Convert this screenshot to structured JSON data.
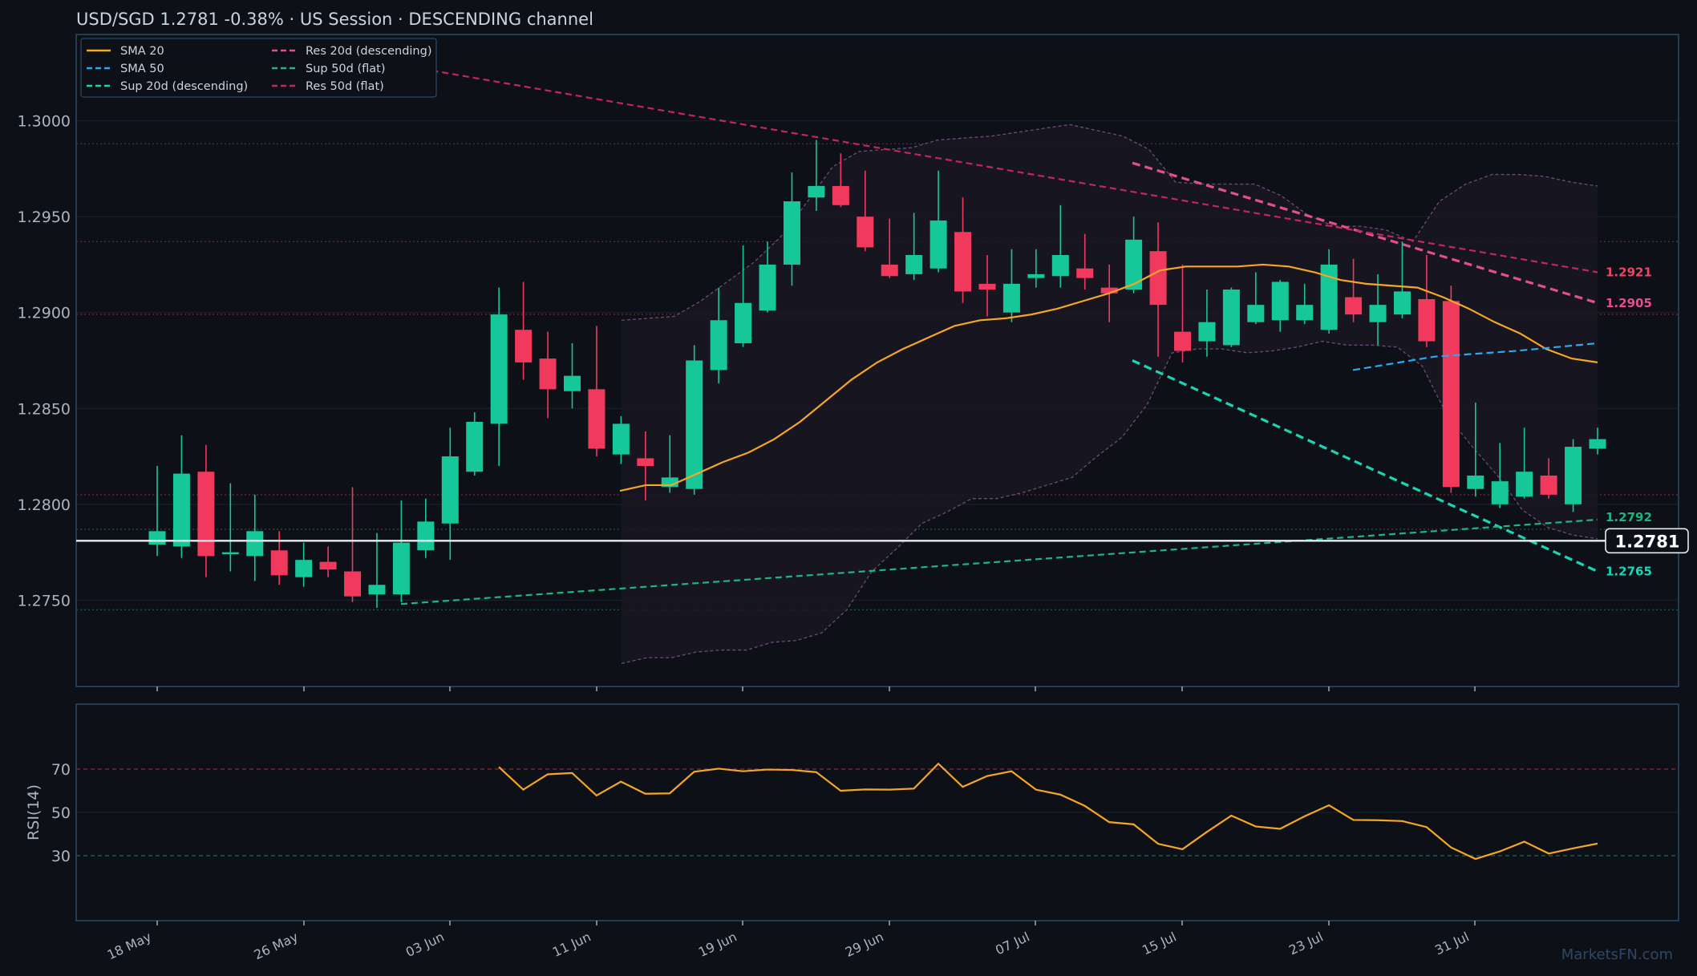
{
  "header": {
    "title": "USD/SGD   1.2781   -0.38%  ·  US Session  ·  DESCENDING channel"
  },
  "colors": {
    "background": "#0d1117",
    "panel_border": "#2a4a6a",
    "up": "#16c79a",
    "down": "#f0395d",
    "sma20": "#f5a623",
    "sma50": "#2aa8f0",
    "sup20": "#18d6b4",
    "res20": "#e34f8d",
    "sup50": "#1fb57e",
    "res50": "#c2265b",
    "bollinger": "#6d4a7c",
    "rsi": "#f5a623"
  },
  "watermark": "MarketsFN.com",
  "chart_data": {
    "type": "candlestick",
    "ylim": [
      1.2705,
      1.3045
    ],
    "yticks": [
      "1.3000",
      "1.2950",
      "1.2900",
      "1.2850",
      "1.2800",
      "1.2750"
    ],
    "xticks": [
      "18 May",
      "26 May",
      "03 Jun",
      "11 Jun",
      "19 Jun",
      "29 Jun",
      "07 Jul",
      "15 Jul",
      "23 Jul",
      "31 Jul"
    ],
    "x": [
      "2025-05-18",
      "2025-05-19",
      "2025-05-20",
      "2025-05-21",
      "2025-05-22",
      "2025-05-23",
      "2025-05-24",
      "2025-05-25",
      "2025-05-26",
      "2025-05-27",
      "2025-05-28",
      "2025-05-29",
      "2025-05-30",
      "2025-05-31",
      "2025-06-01",
      "2025-06-02",
      "2025-06-03",
      "2025-06-04",
      "2025-06-05",
      "2025-06-06",
      "2025-06-07",
      "2025-06-08",
      "2025-06-09",
      "2025-06-10",
      "2025-06-11",
      "2025-06-12",
      "2025-06-13",
      "2025-06-14",
      "2025-06-15",
      "2025-06-16",
      "2025-06-17",
      "2025-06-18",
      "2025-06-19",
      "2025-06-20",
      "2025-06-21",
      "2025-06-22",
      "2025-06-23",
      "2025-06-24",
      "2025-06-25",
      "2025-06-26",
      "2025-06-27",
      "2025-06-28",
      "2025-06-29",
      "2025-06-30",
      "2025-07-01",
      "2025-07-02",
      "2025-07-03",
      "2025-07-04",
      "2025-07-05",
      "2025-07-06",
      "2025-07-07",
      "2025-07-08",
      "2025-07-09",
      "2025-07-10",
      "2025-07-11",
      "2025-07-12",
      "2025-07-13",
      "2025-07-14",
      "2025-07-15",
      "2025-07-16",
      "2025-07-17",
      "2025-07-18",
      "2025-07-19",
      "2025-07-20",
      "2025-07-21",
      "2025-07-22",
      "2025-07-23",
      "2025-07-24",
      "2025-07-25",
      "2025-07-26",
      "2025-07-27",
      "2025-07-28",
      "2025-07-29",
      "2025-07-30",
      "2025-07-31",
      "2025-08-01",
      "2025-08-02",
      "2025-08-03",
      "2025-08-04"
    ],
    "candles": [
      {
        "o": 1.2779,
        "h": 1.282,
        "l": 1.2773,
        "c": 1.2786
      },
      {
        "o": 1.2778,
        "h": 1.2836,
        "l": 1.2772,
        "c": 1.2816
      },
      {
        "o": 1.2817,
        "h": 1.2831,
        "l": 1.2762,
        "c": 1.2773
      },
      {
        "o": 1.2774,
        "h": 1.2811,
        "l": 1.2765,
        "c": 1.2775
      },
      {
        "o": 1.2773,
        "h": 1.2805,
        "l": 1.276,
        "c": 1.2786
      },
      {
        "o": 1.2776,
        "h": 1.2786,
        "l": 1.2758,
        "c": 1.2763
      },
      {
        "o": 1.2762,
        "h": 1.278,
        "l": 1.2757,
        "c": 1.2771
      },
      {
        "o": 1.277,
        "h": 1.2778,
        "l": 1.2762,
        "c": 1.2766
      },
      {
        "o": 1.2765,
        "h": 1.2809,
        "l": 1.2749,
        "c": 1.2752
      },
      {
        "o": 1.2753,
        "h": 1.2785,
        "l": 1.2746,
        "c": 1.2758
      },
      {
        "o": 1.2753,
        "h": 1.2802,
        "l": 1.2749,
        "c": 1.278
      },
      {
        "o": 1.2776,
        "h": 1.2803,
        "l": 1.2772,
        "c": 1.2791
      },
      {
        "o": 1.279,
        "h": 1.284,
        "l": 1.2771,
        "c": 1.2825
      },
      {
        "o": 1.2817,
        "h": 1.2848,
        "l": 1.2815,
        "c": 1.2843
      },
      {
        "o": 1.2842,
        "h": 1.2913,
        "l": 1.282,
        "c": 1.2899
      },
      {
        "o": 1.2891,
        "h": 1.2916,
        "l": 1.2865,
        "c": 1.2874
      },
      {
        "o": 1.2876,
        "h": 1.289,
        "l": 1.2845,
        "c": 1.286
      },
      {
        "o": 1.2859,
        "h": 1.2884,
        "l": 1.285,
        "c": 1.2867
      },
      {
        "o": 1.286,
        "h": 1.2893,
        "l": 1.2825,
        "c": 1.2829
      },
      {
        "o": 1.2826,
        "h": 1.2846,
        "l": 1.2821,
        "c": 1.2842
      },
      {
        "o": 1.2824,
        "h": 1.2838,
        "l": 1.2802,
        "c": 1.282
      },
      {
        "o": 1.2809,
        "h": 1.2836,
        "l": 1.2806,
        "c": 1.2814
      },
      {
        "o": 1.2808,
        "h": 1.2883,
        "l": 1.2805,
        "c": 1.2875
      },
      {
        "o": 1.287,
        "h": 1.2913,
        "l": 1.2863,
        "c": 1.2896
      },
      {
        "o": 1.2884,
        "h": 1.2935,
        "l": 1.2882,
        "c": 1.2905
      },
      {
        "o": 1.2901,
        "h": 1.2937,
        "l": 1.29,
        "c": 1.2925
      },
      {
        "o": 1.2925,
        "h": 1.2973,
        "l": 1.2914,
        "c": 1.2958
      },
      {
        "o": 1.296,
        "h": 1.299,
        "l": 1.2953,
        "c": 1.2966
      },
      {
        "o": 1.2966,
        "h": 1.2983,
        "l": 1.2955,
        "c": 1.2956
      },
      {
        "o": 1.295,
        "h": 1.2974,
        "l": 1.2932,
        "c": 1.2934
      },
      {
        "o": 1.2925,
        "h": 1.2949,
        "l": 1.2918,
        "c": 1.2919
      },
      {
        "o": 1.292,
        "h": 1.2952,
        "l": 1.2917,
        "c": 1.293
      },
      {
        "o": 1.2923,
        "h": 1.2974,
        "l": 1.2921,
        "c": 1.2948
      },
      {
        "o": 1.2942,
        "h": 1.296,
        "l": 1.2905,
        "c": 1.2911
      },
      {
        "o": 1.2915,
        "h": 1.293,
        "l": 1.2898,
        "c": 1.2912
      },
      {
        "o": 1.29,
        "h": 1.2933,
        "l": 1.2895,
        "c": 1.2915
      },
      {
        "o": 1.2918,
        "h": 1.2933,
        "l": 1.2913,
        "c": 1.292
      },
      {
        "o": 1.2919,
        "h": 1.2956,
        "l": 1.2913,
        "c": 1.293
      },
      {
        "o": 1.2923,
        "h": 1.2941,
        "l": 1.2912,
        "c": 1.2918
      },
      {
        "o": 1.2913,
        "h": 1.2925,
        "l": 1.2895,
        "c": 1.291
      },
      {
        "o": 1.2912,
        "h": 1.295,
        "l": 1.291,
        "c": 1.2938
      },
      {
        "o": 1.2932,
        "h": 1.2947,
        "l": 1.2877,
        "c": 1.2904
      },
      {
        "o": 1.289,
        "h": 1.2925,
        "l": 1.2874,
        "c": 1.288
      },
      {
        "o": 1.2885,
        "h": 1.2912,
        "l": 1.2877,
        "c": 1.2895
      },
      {
        "o": 1.2883,
        "h": 1.2913,
        "l": 1.2882,
        "c": 1.2912
      },
      {
        "o": 1.2895,
        "h": 1.2921,
        "l": 1.2894,
        "c": 1.2904
      },
      {
        "o": 1.2896,
        "h": 1.2917,
        "l": 1.289,
        "c": 1.2916
      },
      {
        "o": 1.2896,
        "h": 1.2915,
        "l": 1.2894,
        "c": 1.2904
      },
      {
        "o": 1.2891,
        "h": 1.2933,
        "l": 1.2889,
        "c": 1.2925
      },
      {
        "o": 1.2908,
        "h": 1.2928,
        "l": 1.2895,
        "c": 1.2899
      },
      {
        "o": 1.2895,
        "h": 1.292,
        "l": 1.2883,
        "c": 1.2904
      },
      {
        "o": 1.2899,
        "h": 1.2937,
        "l": 1.2897,
        "c": 1.2911
      },
      {
        "o": 1.2907,
        "h": 1.293,
        "l": 1.2882,
        "c": 1.2885
      },
      {
        "o": 1.2906,
        "h": 1.2914,
        "l": 1.2806,
        "c": 1.2809
      },
      {
        "o": 1.2808,
        "h": 1.2853,
        "l": 1.2804,
        "c": 1.2815
      },
      {
        "o": 1.28,
        "h": 1.2832,
        "l": 1.2798,
        "c": 1.2812
      },
      {
        "o": 1.2804,
        "h": 1.284,
        "l": 1.2803,
        "c": 1.2817
      },
      {
        "o": 1.2815,
        "h": 1.2824,
        "l": 1.2803,
        "c": 1.2805
      },
      {
        "o": 1.28,
        "h": 1.2834,
        "l": 1.2796,
        "c": 1.283
      },
      {
        "o": 1.2829,
        "h": 1.284,
        "l": 1.2826,
        "c": 1.2834
      }
    ],
    "candle_dates": [
      "2025-05-18",
      "2025-05-19",
      "2025-05-20",
      "2025-05-21",
      "2025-05-22",
      "2025-05-23",
      "2025-05-24",
      "2025-05-25",
      "2025-05-26",
      "2025-05-27",
      "2025-05-28",
      "2025-05-29",
      "2025-05-30",
      "2025-05-31",
      "2025-06-01",
      "2025-06-02",
      "2025-06-03",
      "2025-06-04",
      "2025-06-05",
      "2025-06-06",
      "2025-06-07",
      "2025-06-08",
      "2025-06-09",
      "2025-06-10",
      "2025-06-11",
      "2025-06-12",
      "2025-06-13",
      "2025-06-14",
      "2025-06-15",
      "2025-06-16",
      "2025-06-17",
      "2025-06-18",
      "2025-06-19",
      "2025-06-20",
      "2025-06-21",
      "2025-06-22",
      "2025-06-23",
      "2025-06-24",
      "2025-06-25",
      "2025-06-26",
      "2025-06-27",
      "2025-06-28",
      "2025-06-29",
      "2025-06-30",
      "2025-07-01",
      "2025-07-02",
      "2025-07-03",
      "2025-07-04",
      "2025-07-05",
      "2025-07-06",
      "2025-07-07",
      "2025-07-08",
      "2025-07-09",
      "2025-07-10",
      "2025-07-11",
      "2025-07-12",
      "2025-07-13",
      "2025-07-14",
      "2025-07-15",
      "2025-07-16"
    ],
    "sma20": [
      [
        1.2807,
        1.281,
        1.281,
        1.2816,
        1.2822,
        1.2827,
        1.2834,
        1.2843,
        1.2854,
        1.2865,
        1.2874,
        1.2881,
        1.2887,
        1.2893,
        1.2896,
        1.2897,
        1.2899,
        1.2902,
        1.2906,
        1.291,
        1.2915,
        1.2922,
        1.2924,
        1.2924,
        1.2924,
        1.2925,
        1.2924,
        1.2921,
        1.2917,
        1.2915,
        1.2914,
        1.2913,
        1.2908,
        1.2902,
        1.2895,
        1.2889,
        1.2881,
        1.2876,
        1.2874
      ]
    ],
    "sma50_points": [
      [
        1.287,
        1.2877,
        1.288,
        1.2884
      ]
    ],
    "bollinger_upper": [
      1.2896,
      1.2897,
      1.2898,
      1.2906,
      1.2916,
      1.2926,
      1.2939,
      1.2957,
      1.2976,
      1.2984,
      1.2985,
      1.2986,
      1.299,
      1.2991,
      1.2992,
      1.2994,
      1.2996,
      1.2998,
      1.2995,
      1.2992,
      1.2985,
      1.2968,
      1.2967,
      1.2967,
      1.2967,
      1.2961,
      1.2951,
      1.2945,
      1.2945,
      1.2943,
      1.2937,
      1.2958,
      1.2967,
      1.2972,
      1.2972,
      1.2971,
      1.2968,
      1.2966
    ],
    "bollinger_lower": [
      1.2717,
      1.272,
      1.272,
      1.2723,
      1.2724,
      1.2724,
      1.2728,
      1.2729,
      1.2733,
      1.2745,
      1.2765,
      1.2777,
      1.279,
      1.2796,
      1.2803,
      1.2803,
      1.2806,
      1.281,
      1.2814,
      1.2825,
      1.2835,
      1.2852,
      1.2879,
      1.2881,
      1.2881,
      1.2879,
      1.288,
      1.2882,
      1.2885,
      1.2883,
      1.2883,
      1.2882,
      1.2872,
      1.2846,
      1.283,
      1.2815,
      1.2797,
      1.2788,
      1.2784,
      1.2782
    ],
    "levels": [
      {
        "name": "Res 20d (descending)",
        "from": 1.2978,
        "to": 1.2905,
        "label": "1.2905"
      },
      {
        "name": "Sup 20d (descending)",
        "from": 1.2875,
        "to": 1.2765,
        "label": "1.2765"
      },
      {
        "name": "Sup 50d (flat)",
        "from": 1.2748,
        "to": 1.2792,
        "label": "1.2792"
      },
      {
        "name": "Res 50d (flat)",
        "from": 1.3029,
        "to": 1.2921,
        "label": "1.2921"
      }
    ],
    "horizontal_levels": [
      1.2988,
      1.2937,
      1.2899,
      1.2805,
      1.2787,
      1.2745
    ],
    "current_price": {
      "value": 1.2781,
      "label": "1.2781"
    },
    "legend": [
      {
        "name": "SMA 20",
        "style": "solid",
        "color": "#f5a623"
      },
      {
        "name": "Res 20d (descending)",
        "style": "dashed",
        "color": "#e34f8d"
      },
      {
        "name": "SMA 50",
        "style": "dashed",
        "color": "#2aa8f0"
      },
      {
        "name": "Sup 50d (flat)",
        "style": "dashed",
        "color": "#1fb57e"
      },
      {
        "name": "Sup 20d (descending)",
        "style": "dashed",
        "color": "#18d6b4"
      },
      {
        "name": "Res 50d (flat)",
        "style": "dashed",
        "color": "#c2265b"
      }
    ],
    "legend_placement": "top-left",
    "rsi": {
      "ylabel": "RSI(14)",
      "ylim": [
        0,
        100
      ],
      "yticks": [
        "70",
        "50",
        "30"
      ],
      "upper": 70,
      "lower": 30,
      "values": [
        71.0,
        60.5,
        67.6,
        68.2,
        57.8,
        64.2,
        58.6,
        58.8,
        68.8,
        70.2,
        69.0,
        69.8,
        69.6,
        68.6,
        60.0,
        60.6,
        60.5,
        61.0,
        72.5,
        61.8,
        66.8,
        69.0,
        60.5,
        58.2,
        53.0,
        45.5,
        44.5,
        35.5,
        33.0,
        41.0,
        48.5,
        43.5,
        42.4,
        48.2,
        53.3,
        46.5,
        46.4,
        46.0,
        43.2,
        33.8,
        28.5,
        32.0,
        36.5,
        31.0,
        33.4,
        35.6
      ]
    }
  }
}
